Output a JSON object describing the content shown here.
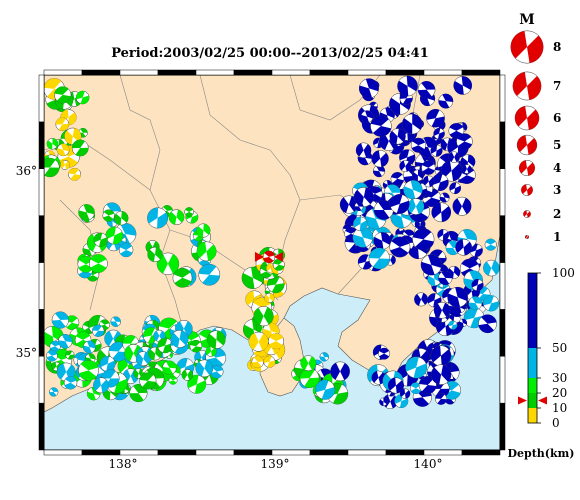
{
  "title": "Period:2003/02/25 00:00--2013/02/25 04:41",
  "map": {
    "lon_range": [
      137.5,
      140.5
    ],
    "lat_range": [
      34.5,
      36.5
    ],
    "lon_ticks": [
      {
        "value": 138,
        "label": "138°"
      },
      {
        "value": 139,
        "label": "139°"
      },
      {
        "value": 140,
        "label": "140°"
      }
    ],
    "lat_ticks": [
      {
        "value": 36,
        "label": "36°"
      },
      {
        "value": 35,
        "label": "35°"
      }
    ],
    "land_color": "#fde3bf",
    "sea_color": "#cdeef8",
    "mainshock": {
      "lon": 138.98,
      "lat": 35.53
    }
  },
  "magnitude_legend": {
    "header": "M",
    "entries": [
      {
        "label": "8",
        "value": 8
      },
      {
        "label": "7",
        "value": 7
      },
      {
        "label": "6",
        "value": 6
      },
      {
        "label": "5",
        "value": 5
      },
      {
        "label": "4",
        "value": 4
      },
      {
        "label": "3",
        "value": 3
      },
      {
        "label": "2",
        "value": 2
      },
      {
        "label": "1",
        "value": 1
      }
    ]
  },
  "depth_scale": {
    "label": "Depth(km)",
    "ticks": [
      {
        "label": "100",
        "value": 100
      },
      {
        "label": "50",
        "value": 50
      },
      {
        "label": "30",
        "value": 30
      },
      {
        "label": "20",
        "value": 20
      },
      {
        "label": "10",
        "value": 10
      },
      {
        "label": "0",
        "value": 0
      }
    ],
    "bands": [
      {
        "from": 0,
        "to": 10,
        "color": "#ffd700"
      },
      {
        "from": 10,
        "to": 20,
        "color": "#00cc00"
      },
      {
        "from": 20,
        "to": 30,
        "color": "#00ee00"
      },
      {
        "from": 30,
        "to": 50,
        "color": "#00b4e6"
      },
      {
        "from": 50,
        "to": 100,
        "color": "#0000b4"
      }
    ],
    "marker_depth": 15,
    "marker_color": "#e00000"
  }
}
